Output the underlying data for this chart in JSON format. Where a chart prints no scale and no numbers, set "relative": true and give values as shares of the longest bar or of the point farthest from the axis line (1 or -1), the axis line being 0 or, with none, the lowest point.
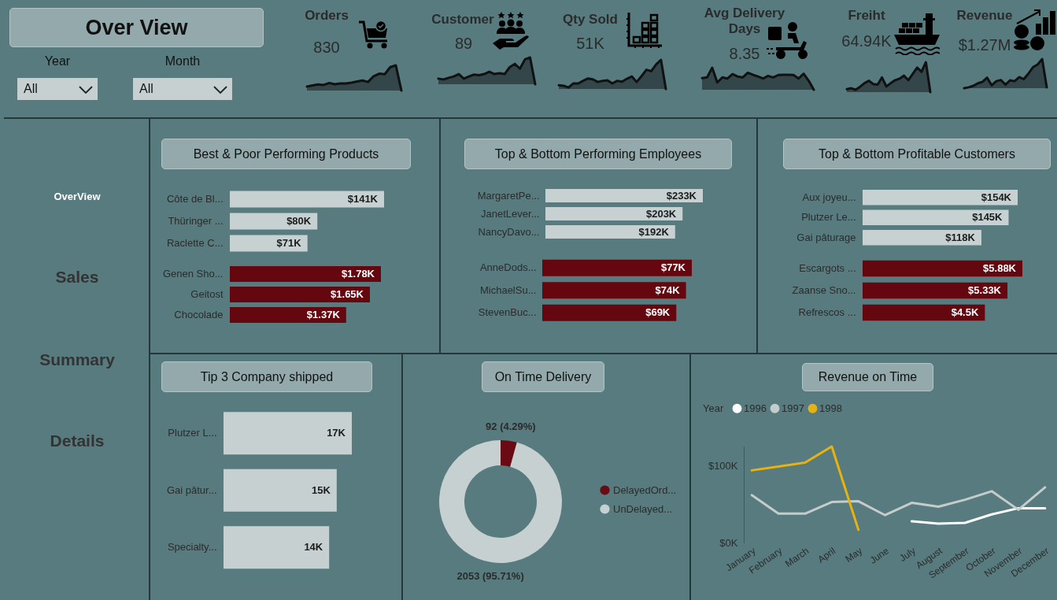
{
  "chart_data": [
    {
      "type": "other",
      "title": "Over View",
      "annotations": [
        "Year",
        "All",
        "Month",
        "All",
        "OverView",
        "Sales",
        "Summary",
        "Details"
      ]
    },
    {
      "type": "area",
      "title": "Orders",
      "annotations": [
        "830"
      ],
      "relative": true,
      "color": "#33474a",
      "categories": [
        null,
        null,
        null,
        null,
        null,
        null,
        null,
        null,
        null,
        null,
        null,
        null,
        null,
        null,
        null,
        null,
        null,
        null
      ],
      "values": [
        0.16,
        0.2,
        0.24,
        0.22,
        0.3,
        0.25,
        0.28,
        0.28,
        0.31,
        0.36,
        0.4,
        0.34,
        0.57,
        0.67,
        0.65,
        0.93,
        1.0,
        0.0
      ]
    },
    {
      "type": "area",
      "title": "Customer",
      "annotations": [
        "89"
      ],
      "relative": true,
      "color": "#33474a",
      "categories": [
        null,
        null,
        null,
        null,
        null,
        null,
        null,
        null,
        null,
        null,
        null,
        null,
        null,
        null,
        null,
        null,
        null,
        null,
        null,
        null
      ],
      "values": [
        0.21,
        0.18,
        0.24,
        0.29,
        0.38,
        0.21,
        0.29,
        0.36,
        0.34,
        0.38,
        0.47,
        0.38,
        0.41,
        0.38,
        0.64,
        0.76,
        0.58,
        0.93,
        1.0,
        0.0
      ]
    },
    {
      "type": "area",
      "title": "Qty Sold",
      "annotations": [
        "51K"
      ],
      "relative": true,
      "color": "#33474a",
      "categories": [
        null,
        null,
        null,
        null,
        null,
        null,
        null,
        null,
        null,
        null,
        null,
        null,
        null,
        null,
        null,
        null,
        null,
        null,
        null,
        null,
        null,
        null,
        null
      ],
      "values": [
        0.13,
        0.11,
        0.05,
        0.19,
        0.19,
        0.28,
        0.36,
        0.33,
        0.24,
        0.28,
        0.3,
        0.19,
        0.28,
        0.25,
        0.35,
        0.43,
        0.24,
        0.44,
        0.66,
        0.61,
        0.84,
        1.0,
        0.0
      ]
    },
    {
      "type": "area",
      "title": "Avg Delivery Days",
      "annotations": [
        "8.35"
      ],
      "relative": true,
      "color": "#33474a",
      "categories": [
        null,
        null,
        null,
        null,
        null,
        null,
        null,
        null,
        null,
        null,
        null,
        null,
        null,
        null,
        null,
        null,
        null,
        null,
        null,
        null,
        null,
        null,
        null
      ],
      "values": [
        0.53,
        0.56,
        1.0,
        0.33,
        0.56,
        0.51,
        0.71,
        0.6,
        0.56,
        0.77,
        0.68,
        0.6,
        0.51,
        0.63,
        0.56,
        0.67,
        0.68,
        0.68,
        0.67,
        0.51,
        0.73,
        0.41,
        0.0
      ]
    },
    {
      "type": "area",
      "title": "Freiht",
      "annotations": [
        "64.94K"
      ],
      "relative": true,
      "color": "#33474a",
      "categories": [
        null,
        null,
        null,
        null,
        null,
        null,
        null,
        null,
        null,
        null,
        null,
        null,
        null,
        null,
        null,
        null,
        null,
        null,
        null,
        null
      ],
      "values": [
        0.1,
        0.13,
        0.08,
        0.18,
        0.3,
        0.38,
        0.27,
        0.25,
        0.49,
        0.19,
        0.3,
        0.4,
        0.45,
        0.55,
        0.4,
        0.61,
        0.82,
        0.68,
        1.0,
        0.0
      ]
    },
    {
      "type": "area",
      "title": "Revenue",
      "annotations": [
        "$1.27M"
      ],
      "relative": true,
      "color": "#33474a",
      "categories": [
        null,
        null,
        null,
        null,
        null,
        null,
        null,
        null,
        null,
        null,
        null,
        null,
        null,
        null,
        null,
        null,
        null,
        null,
        null
      ],
      "values": [
        0.0,
        0.03,
        0.08,
        0.17,
        0.22,
        0.36,
        0.1,
        0.24,
        0.28,
        0.12,
        0.27,
        0.24,
        0.38,
        0.31,
        0.5,
        0.72,
        0.81,
        1.0,
        0.03
      ]
    },
    {
      "type": "bar",
      "orientation": "horizontal",
      "title": "Best & Poor Performing Products",
      "categories": [
        "Côte de Bl...",
        "Thüringer ...",
        "Raclette C..."
      ],
      "values": [
        141,
        80,
        71
      ],
      "color": "#c7d1d1",
      "value_labels": [
        "$141K",
        "$80K",
        "$71K"
      ]
    },
    {
      "type": "bar",
      "orientation": "horizontal",
      "categories": [
        "Genen Sho...",
        "Geitost",
        "Chocolade"
      ],
      "values": [
        1.78,
        1.65,
        1.37
      ],
      "color": "#64070f",
      "value_labels": [
        "$1.78K",
        "$1.65K",
        "$1.37K"
      ]
    },
    {
      "type": "bar",
      "orientation": "horizontal",
      "title": "Top & Bottom Performing Employees",
      "categories": [
        "MargaretPe...",
        "JanetLever...",
        "NancyDavo..."
      ],
      "values": [
        233,
        203,
        192
      ],
      "color": "#c7d1d1",
      "value_labels": [
        "$233K",
        "$203K",
        "$192K"
      ]
    },
    {
      "type": "bar",
      "orientation": "horizontal",
      "categories": [
        "AnneDods...",
        "MichaelSu...",
        "StevenBuc..."
      ],
      "values": [
        77,
        74,
        69
      ],
      "color": "#64070f",
      "value_labels": [
        "$77K",
        "$74K",
        "$69K"
      ]
    },
    {
      "type": "bar",
      "orientation": "horizontal",
      "title": "Top & Bottom Profitable Customers",
      "categories": [
        "Aux joyeu...",
        "Plutzer Le...",
        "Gai pâturage"
      ],
      "values": [
        154,
        145,
        118
      ],
      "color": "#c7d1d1",
      "value_labels": [
        "$154K",
        "$145K",
        "$118K"
      ]
    },
    {
      "type": "bar",
      "orientation": "horizontal",
      "categories": [
        "Escargots ...",
        "Zaanse Sno...",
        "Refrescos ..."
      ],
      "values": [
        5.88,
        5.33,
        4.5
      ],
      "color": "#64070f",
      "value_labels": [
        "$5.88K",
        "$5.33K",
        "$4.5K"
      ]
    },
    {
      "type": "bar",
      "orientation": "horizontal",
      "title": "Tip 3 Company shipped",
      "categories": [
        "Plutzer L...",
        "Gai pâtur...",
        "Specialty..."
      ],
      "values": [
        17,
        15,
        14
      ],
      "color": "#c6d0d0",
      "value_labels": [
        "17K",
        "15K",
        "14K"
      ]
    },
    {
      "type": "donut",
      "title": "On Time Delivery",
      "categories": [
        "DelayedOrd...",
        "UnDelayed..."
      ],
      "values": [
        92,
        2053
      ],
      "colors": [
        "#6a0a12",
        "#c6d0d0"
      ],
      "value_labels": [
        "92 (4.29%)",
        "2053 (95.71%)"
      ],
      "legend": "right"
    },
    {
      "type": "line",
      "title": "Revenue on Time",
      "legend_title": "Year",
      "legend": "top left",
      "categories": [
        "January",
        "February",
        "March",
        "April",
        "May",
        "June",
        "July",
        "August",
        "September",
        "October",
        "November",
        "December"
      ],
      "series": [
        {
          "name": "1996",
          "color": "#ffffff",
          "values": [
            null,
            null,
            null,
            null,
            null,
            null,
            28,
            25,
            26,
            37,
            45,
            45
          ]
        },
        {
          "name": "1997",
          "color": "#c5cccc",
          "values": [
            62,
            38,
            38,
            53,
            54,
            36,
            52,
            47,
            56,
            67,
            43,
            72
          ]
        },
        {
          "name": "1998",
          "color": "#e8b30f",
          "values": [
            94,
            99,
            104,
            125,
            17,
            null,
            null,
            null,
            null,
            null,
            null,
            null
          ]
        }
      ],
      "ylim": [
        0,
        125
      ],
      "yticks": [
        {
          "value": 0,
          "label": "$0K"
        },
        {
          "value": 100,
          "label": "$100K"
        }
      ]
    }
  ]
}
